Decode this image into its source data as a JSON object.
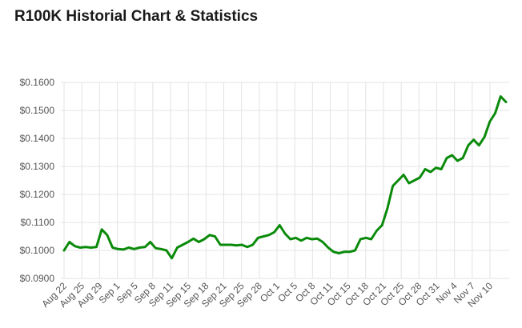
{
  "page": {
    "title": "R100K Historial Chart & Statistics"
  },
  "colors": {
    "line": "#0a8a0a",
    "grid": "#e3e3e3",
    "tick_text": "#555555",
    "title": "#1a1a1a"
  },
  "chart_data": {
    "type": "line",
    "title": "",
    "xlabel": "",
    "ylabel": "",
    "grid": true,
    "legend": "none",
    "ylim": [
      0.09,
      0.16
    ],
    "y_ticks": [
      "$0.1600",
      "$0.1500",
      "$0.1400",
      "$0.1300",
      "$0.1200",
      "$0.1100",
      "$0.1000",
      "$0.0900"
    ],
    "x_ticks": [
      "Aug 22",
      "Aug 25",
      "Aug 29",
      "Sep 1",
      "Sep 5",
      "Sep 8",
      "Sep 11",
      "Sep 15",
      "Sep 18",
      "Sep 21",
      "Sep 25",
      "Sep 28",
      "Oct 1",
      "Oct 5",
      "Oct 8",
      "Oct 11",
      "Oct 15",
      "Oct 18",
      "Oct 21",
      "Oct 25",
      "Oct 28",
      "Oct 31",
      "Nov 4",
      "Nov 7",
      "Nov 10"
    ],
    "series": [
      {
        "name": "",
        "x_dates": [
          "Aug 22",
          "Aug 23",
          "Aug 24",
          "Aug 25",
          "Aug 26",
          "Aug 27",
          "Aug 28",
          "Aug 29",
          "Aug 30",
          "Aug 31",
          "Sep 1",
          "Sep 2",
          "Sep 3",
          "Sep 4",
          "Sep 5",
          "Sep 6",
          "Sep 7",
          "Sep 8",
          "Sep 9",
          "Sep 10",
          "Sep 11",
          "Sep 12",
          "Sep 13",
          "Sep 14",
          "Sep 15",
          "Sep 16",
          "Sep 17",
          "Sep 18",
          "Sep 19",
          "Sep 20",
          "Sep 21",
          "Sep 22",
          "Sep 23",
          "Sep 24",
          "Sep 25",
          "Sep 26",
          "Sep 27",
          "Sep 28",
          "Sep 29",
          "Sep 30",
          "Oct 1",
          "Oct 2",
          "Oct 3",
          "Oct 4",
          "Oct 5",
          "Oct 6",
          "Oct 7",
          "Oct 8",
          "Oct 9",
          "Oct 10",
          "Oct 11",
          "Oct 12",
          "Oct 13",
          "Oct 14",
          "Oct 15",
          "Oct 16",
          "Oct 17",
          "Oct 18",
          "Oct 19",
          "Oct 20",
          "Oct 21",
          "Oct 22",
          "Oct 23",
          "Oct 24",
          "Oct 25",
          "Oct 26",
          "Oct 27",
          "Oct 28",
          "Oct 29",
          "Oct 30",
          "Oct 31",
          "Nov 1",
          "Nov 2",
          "Nov 3",
          "Nov 4",
          "Nov 5",
          "Nov 6",
          "Nov 7",
          "Nov 8",
          "Nov 9",
          "Nov 10",
          "Nov 11",
          "Nov 12"
        ],
        "values": [
          0.1,
          0.103,
          0.1015,
          0.101,
          0.1012,
          0.101,
          0.1012,
          0.1075,
          0.1055,
          0.101,
          0.1005,
          0.1003,
          0.101,
          0.1005,
          0.101,
          0.1012,
          0.103,
          0.1008,
          0.1005,
          0.1,
          0.0972,
          0.101,
          0.102,
          0.103,
          0.1042,
          0.103,
          0.104,
          0.1055,
          0.105,
          0.102,
          0.102,
          0.102,
          0.1018,
          0.102,
          0.1012,
          0.102,
          0.1045,
          0.105,
          0.1055,
          0.1065,
          0.109,
          0.106,
          0.104,
          0.1045,
          0.1035,
          0.1045,
          0.104,
          0.1042,
          0.103,
          0.101,
          0.0995,
          0.099,
          0.0995,
          0.0995,
          0.1,
          0.104,
          0.1045,
          0.104,
          0.107,
          0.109,
          0.115,
          0.123,
          0.125,
          0.127,
          0.124,
          0.125,
          0.126,
          0.129,
          0.128,
          0.1295,
          0.129,
          0.133,
          0.134,
          0.132,
          0.133,
          0.1375,
          0.1395,
          0.1375,
          0.1405,
          0.146,
          0.149,
          0.155,
          0.153
        ]
      }
    ]
  }
}
